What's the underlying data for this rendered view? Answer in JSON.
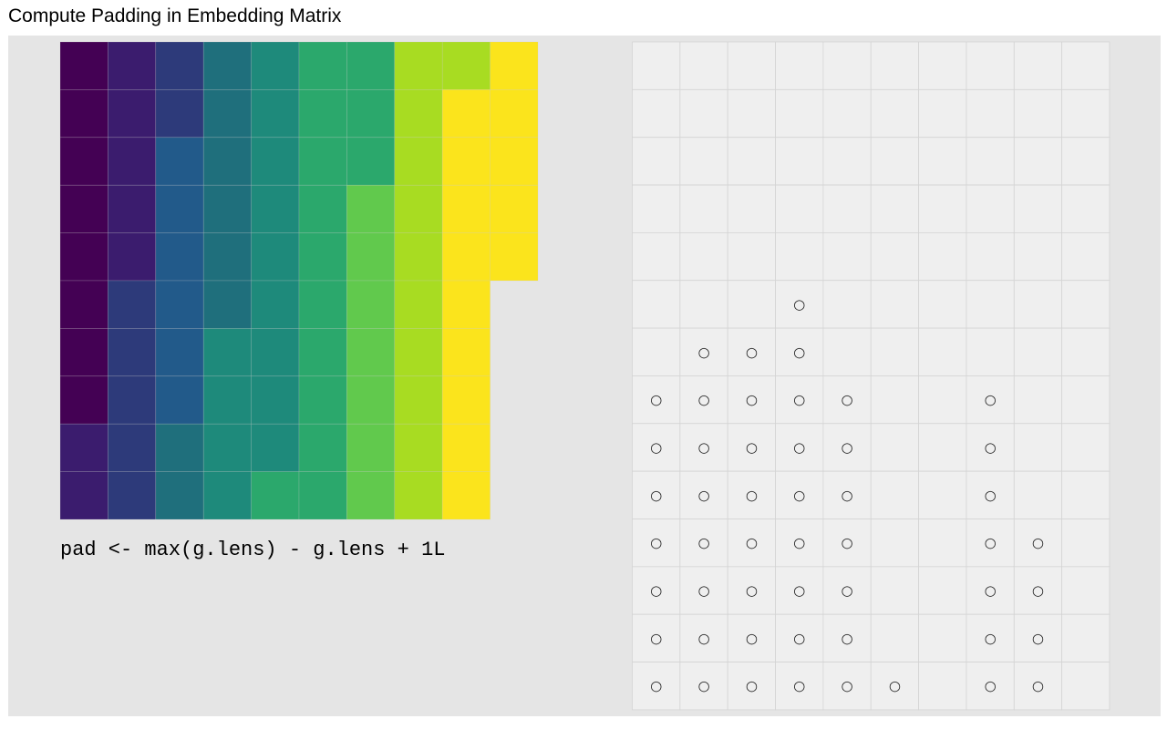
{
  "title": "Compute Padding in Embedding Matrix",
  "code_label": "pad <- max(g.lens) - g.lens + 1L",
  "colors": {
    "panel_background": "#e5e5e5",
    "grid_cell_background": "#efefef",
    "grid_line": "#d4d4d4",
    "viridis_palette": [
      "#440154",
      "#3b1c6e",
      "#2d3a7a",
      "#225a8a",
      "#1f6f7c",
      "#1e8a7b",
      "#2ba86c",
      "#61c94d",
      "#a8dc22",
      "#fbe41c"
    ]
  },
  "chart_data": [
    {
      "type": "heatmap",
      "title": "",
      "n_rows": 10,
      "n_cols": 10,
      "column_lengths": [
        10,
        10,
        10,
        10,
        10,
        10,
        10,
        10,
        10,
        5
      ],
      "values": [
        [
          0,
          1,
          2,
          4,
          5,
          6,
          6,
          8,
          8,
          9
        ],
        [
          0,
          1,
          2,
          4,
          5,
          6,
          6,
          8,
          9,
          9
        ],
        [
          0,
          1,
          3,
          4,
          5,
          6,
          6,
          8,
          9,
          9
        ],
        [
          0,
          1,
          3,
          4,
          5,
          6,
          7,
          8,
          9,
          9
        ],
        [
          0,
          1,
          3,
          4,
          5,
          6,
          7,
          8,
          9,
          9
        ],
        [
          0,
          2,
          3,
          4,
          5,
          6,
          7,
          8,
          9,
          null
        ],
        [
          0,
          2,
          3,
          5,
          5,
          6,
          7,
          8,
          9,
          null
        ],
        [
          0,
          2,
          3,
          5,
          5,
          6,
          7,
          8,
          9,
          null
        ],
        [
          1,
          2,
          4,
          5,
          5,
          6,
          7,
          8,
          9,
          null
        ],
        [
          1,
          2,
          4,
          5,
          6,
          6,
          7,
          8,
          9,
          null
        ]
      ]
    },
    {
      "type": "table",
      "title": "",
      "n_rows": 14,
      "n_cols": 10,
      "marker": "○",
      "padding_counts": [
        7,
        8,
        8,
        9,
        7,
        1,
        0,
        7,
        4,
        0
      ]
    }
  ]
}
